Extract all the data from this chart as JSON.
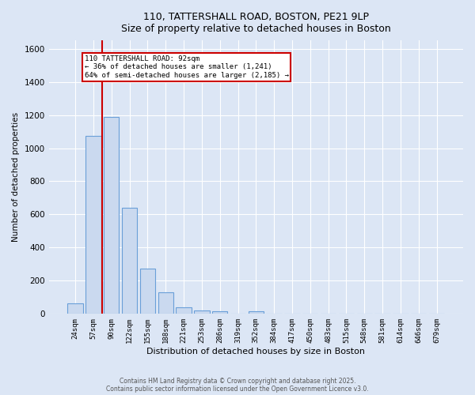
{
  "title_line1": "110, TATTERSHALL ROAD, BOSTON, PE21 9LP",
  "title_line2": "Size of property relative to detached houses in Boston",
  "xlabel": "Distribution of detached houses by size in Boston",
  "ylabel": "Number of detached properties",
  "bar_labels": [
    "24sqm",
    "57sqm",
    "90sqm",
    "122sqm",
    "155sqm",
    "188sqm",
    "221sqm",
    "253sqm",
    "286sqm",
    "319sqm",
    "352sqm",
    "384sqm",
    "417sqm",
    "450sqm",
    "483sqm",
    "515sqm",
    "548sqm",
    "581sqm",
    "614sqm",
    "646sqm",
    "679sqm"
  ],
  "bar_values": [
    65,
    1075,
    1190,
    640,
    275,
    130,
    40,
    20,
    15,
    0,
    15,
    0,
    0,
    0,
    0,
    0,
    0,
    0,
    0,
    0,
    0
  ],
  "bar_color": "#cad9ef",
  "bar_edge_color": "#6a9fd8",
  "vline_x_index": 2,
  "vline_color": "#cc0000",
  "annotation_text": "110 TATTERSHALL ROAD: 92sqm\n← 36% of detached houses are smaller (1,241)\n64% of semi-detached houses are larger (2,185) →",
  "annotation_box_facecolor": "#ffffff",
  "annotation_box_edgecolor": "#cc0000",
  "ylim": [
    0,
    1650
  ],
  "yticks": [
    0,
    200,
    400,
    600,
    800,
    1000,
    1200,
    1400,
    1600
  ],
  "background_color": "#dce6f5",
  "grid_color": "#ffffff",
  "footer_line1": "Contains HM Land Registry data © Crown copyright and database right 2025.",
  "footer_line2": "Contains public sector information licensed under the Open Government Licence v3.0."
}
